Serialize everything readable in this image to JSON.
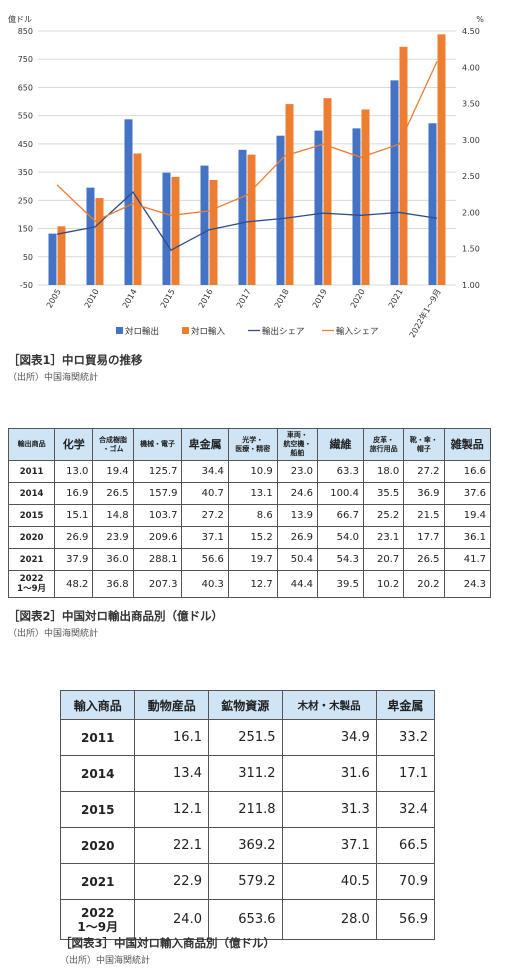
{
  "chart_data": {
    "type": "bar",
    "categories": [
      "2005",
      "2010",
      "2014",
      "2015",
      "2016",
      "2017",
      "2018",
      "2019",
      "2020",
      "2021",
      "2022年1～9月"
    ],
    "y_left_unit": "億ドル",
    "y_right_unit": "%",
    "ylim_left": [
      -50,
      850
    ],
    "ylim_right": [
      1.0,
      4.5
    ],
    "yticks_left": [
      850,
      750,
      650,
      550,
      450,
      350,
      250,
      150,
      50,
      -50
    ],
    "yticks_right": [
      "4.50",
      "4.00",
      "3.50",
      "3.00",
      "2.50",
      "2.00",
      "1.50",
      "1.00"
    ],
    "grid": true,
    "legend_position": "bottom",
    "series": [
      {
        "name": "対ロ輸出",
        "kind": "bar",
        "axis": "left",
        "color": "#4472C4",
        "values": [
          132,
          295,
          537,
          348,
          373,
          429,
          479,
          497,
          505,
          675,
          523
        ]
      },
      {
        "name": "対ロ輸入",
        "kind": "bar",
        "axis": "left",
        "color": "#ED7D31",
        "values": [
          158,
          258,
          416,
          333,
          322,
          412,
          591,
          612,
          572,
          794,
          838
        ]
      },
      {
        "name": "輸出シェア",
        "kind": "line",
        "axis": "right",
        "color": "#2F4D8A",
        "values": [
          1.7,
          1.8,
          2.28,
          1.48,
          1.76,
          1.87,
          1.92,
          1.99,
          1.96,
          2.0,
          1.92
        ]
      },
      {
        "name": "輸入シェア",
        "kind": "line",
        "axis": "right",
        "color": "#ED7D31",
        "values": [
          2.38,
          1.88,
          2.12,
          1.96,
          2.02,
          2.24,
          2.78,
          2.94,
          2.76,
          2.94,
          4.08
        ]
      }
    ]
  },
  "figure1": {
    "caption": "［図表1］中ロ貿易の推移",
    "source": "（出所）中国海関統計"
  },
  "table2": {
    "caption": "［図表2］中国対ロ輸出商品別（億ドル）",
    "source": "（出所）中国海関統計",
    "corner": "輸出商品",
    "headers": [
      "化学",
      "合成樹脂・ゴム",
      "機械・電子",
      "卑金属",
      "光学・医療・精密",
      "車両・航空機・船舶",
      "繊維",
      "皮革・旅行用品",
      "靴・傘・帽子",
      "雑製品"
    ],
    "rows": [
      {
        "year": "2011",
        "values": [
          "13.0",
          "19.4",
          "125.7",
          "34.4",
          "10.9",
          "23.0",
          "63.3",
          "18.0",
          "27.2",
          "16.6"
        ]
      },
      {
        "year": "2014",
        "values": [
          "16.9",
          "26.5",
          "157.9",
          "40.7",
          "13.1",
          "24.6",
          "100.4",
          "35.5",
          "36.9",
          "37.6"
        ]
      },
      {
        "year": "2015",
        "values": [
          "15.1",
          "14.8",
          "103.7",
          "27.2",
          "8.6",
          "13.9",
          "66.7",
          "25.2",
          "21.5",
          "19.4"
        ]
      },
      {
        "year": "2020",
        "values": [
          "26.9",
          "23.9",
          "209.6",
          "37.1",
          "15.2",
          "26.9",
          "54.0",
          "23.1",
          "17.7",
          "36.1"
        ]
      },
      {
        "year": "2021",
        "values": [
          "37.9",
          "36.0",
          "288.1",
          "56.6",
          "19.7",
          "50.4",
          "54.3",
          "20.7",
          "26.5",
          "41.7"
        ]
      },
      {
        "year": "2022",
        "year_sub": "1～9月",
        "values": [
          "48.2",
          "36.8",
          "207.3",
          "40.3",
          "12.7",
          "44.4",
          "39.5",
          "10.2",
          "20.2",
          "24.3"
        ]
      }
    ]
  },
  "table3": {
    "caption": "［図表3］中国対ロ輸入商品別（億ドル）",
    "source": "（出所）中国海関統計",
    "corner": "輸入商品",
    "headers": [
      "動物産品",
      "鉱物資源",
      "木材・木製品",
      "卑金属"
    ],
    "rows": [
      {
        "year": "2011",
        "values": [
          "16.1",
          "251.5",
          "34.9",
          "33.2"
        ]
      },
      {
        "year": "2014",
        "values": [
          "13.4",
          "311.2",
          "31.6",
          "17.1"
        ]
      },
      {
        "year": "2015",
        "values": [
          "12.1",
          "211.8",
          "31.3",
          "32.4"
        ]
      },
      {
        "year": "2020",
        "values": [
          "22.1",
          "369.2",
          "37.1",
          "66.5"
        ]
      },
      {
        "year": "2021",
        "values": [
          "22.9",
          "579.2",
          "40.5",
          "70.9"
        ]
      },
      {
        "year": "2022",
        "year_sub": "1～9月",
        "values": [
          "24.0",
          "653.6",
          "28.0",
          "56.9"
        ]
      }
    ]
  }
}
